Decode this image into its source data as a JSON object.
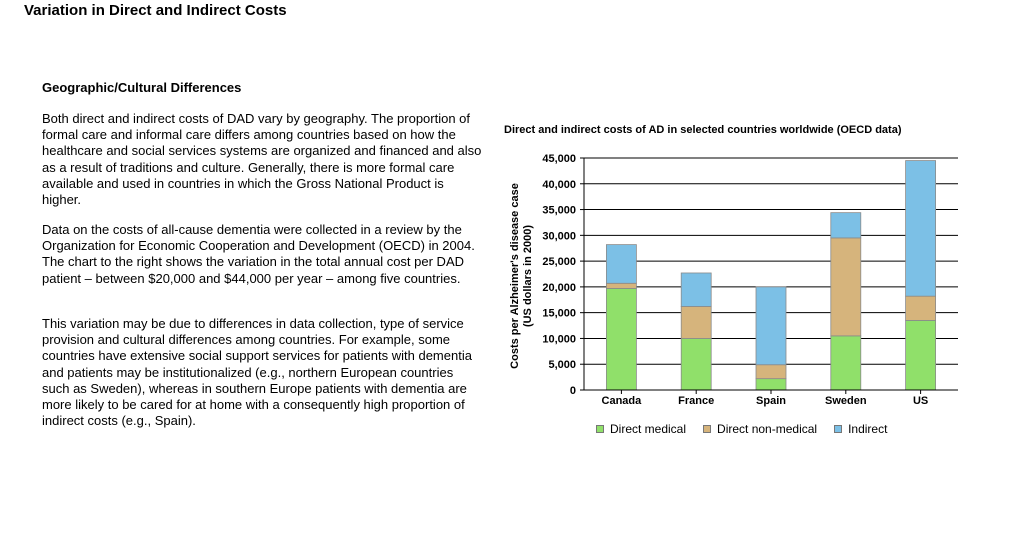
{
  "page": {
    "title": "Variation in Direct and Indirect Costs",
    "section_heading": "Geographic/Cultural Differences",
    "paragraphs": [
      "Both direct and indirect costs of DAD vary by geography. The proportion of formal care and informal care differs among countries based on how the healthcare and social services systems are organized and financed and also as a result of traditions and culture. Generally, there is more formal care available and used in countries in which the Gross National Product is higher.",
      "Data on the costs of all-cause dementia were collected in a review by the Organization for Economic Cooperation and Development (OECD) in 2004. The chart to the right shows the variation in the total annual cost per DAD patient – between $20,000 and $44,000 per year – among five countries.",
      "This variation may be due to differences in data collection, type of service provision and cultural differences among countries. For example, some countries have extensive social support services for patients with dementia and patients may be institutionalized (e.g., northern European countries such as Sweden), whereas in southern Europe patients with dementia are more likely to be cared for at home with a consequently high proportion of indirect costs (e.g., Spain)."
    ]
  },
  "chart_data": {
    "type": "bar",
    "stacked": true,
    "title": "Direct and indirect costs of AD in selected countries worldwide (OECD data)",
    "ylabel_lines": [
      "Costs per Alzheimer's disease case",
      "(US dollars in 2000)"
    ],
    "categories": [
      "Canada",
      "France",
      "Spain",
      "Sweden",
      "US"
    ],
    "ylim": [
      0,
      45000
    ],
    "yticks": [
      0,
      5000,
      10000,
      15000,
      20000,
      25000,
      30000,
      35000,
      40000,
      45000
    ],
    "ytick_labels": [
      "0",
      "5,000",
      "10,000",
      "15,000",
      "20,000",
      "25,000",
      "30,000",
      "35,000",
      "40,000",
      "45,000"
    ],
    "grid": true,
    "legend_position": "bottom",
    "series": [
      {
        "name": "Direct medical",
        "color": "#90e06a",
        "values": [
          19700,
          10000,
          2200,
          10500,
          13500
        ]
      },
      {
        "name": "Direct non-medical",
        "color": "#d6b47c",
        "values": [
          1000,
          6200,
          2700,
          19000,
          4700
        ]
      },
      {
        "name": "Indirect",
        "color": "#7cc0e6",
        "values": [
          7500,
          6500,
          15100,
          4900,
          26300
        ]
      }
    ]
  }
}
